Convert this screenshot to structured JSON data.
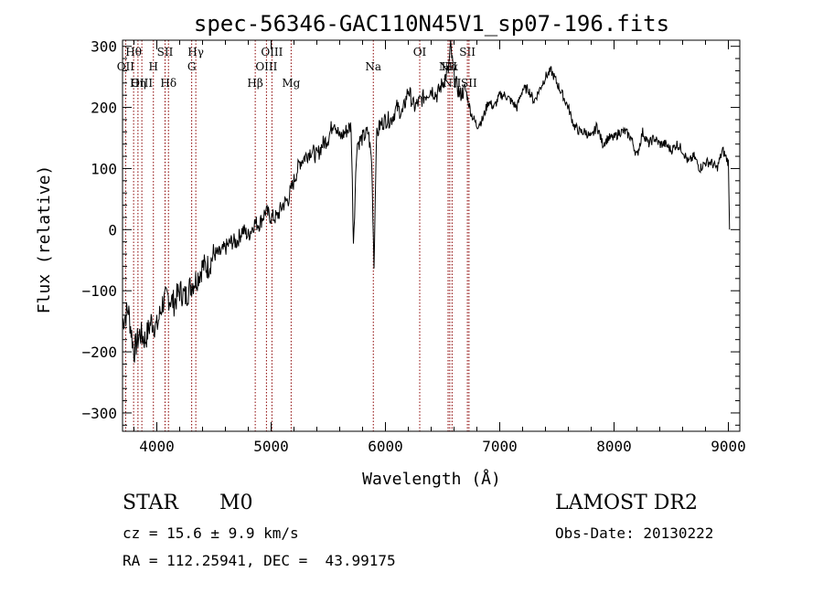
{
  "chart_data": {
    "type": "line",
    "title": "spec-56346-GAC110N45V1_sp07-196.fits",
    "xlabel": "Wavelength (Å)",
    "ylabel": "Flux (relative)",
    "xlim": [
      3700,
      9100
    ],
    "ylim": [
      -330,
      310
    ],
    "x_ticks": [
      4000,
      5000,
      6000,
      7000,
      8000,
      9000
    ],
    "y_ticks": [
      -300,
      -200,
      -100,
      0,
      100,
      200,
      300
    ],
    "grid": false,
    "line_color": "#000000",
    "marker_color": "#8b0000",
    "series": [
      {
        "x": [
          3700,
          3750,
          3800,
          3850,
          3900,
          3950,
          4000,
          4050,
          4100,
          4150,
          4200,
          4250,
          4300,
          4350,
          4400,
          4450,
          4500,
          4550,
          4600,
          4650,
          4700,
          4750,
          4800,
          4850,
          4900,
          4950,
          5000,
          5050,
          5100,
          5150,
          5200,
          5250,
          5300,
          5350,
          5400,
          5450,
          5500,
          5550,
          5600,
          5650,
          5700,
          5720,
          5750,
          5800,
          5850,
          5880,
          5900,
          5920,
          5950,
          6000,
          6050,
          6100,
          6150,
          6200,
          6250,
          6300,
          6350,
          6400,
          6450,
          6500,
          6550,
          6570,
          6600,
          6650,
          6700,
          6750,
          6800,
          6850,
          6900,
          6950,
          7000,
          7050,
          7100,
          7150,
          7200,
          7250,
          7300,
          7350,
          7400,
          7450,
          7500,
          7550,
          7600,
          7650,
          7700,
          7750,
          7800,
          7850,
          7900,
          7950,
          8000,
          8050,
          8100,
          8150,
          8200,
          8250,
          8300,
          8350,
          8400,
          8450,
          8500,
          8550,
          8600,
          8650,
          8700,
          8750,
          8800,
          8850,
          8900,
          8950,
          9000,
          9010
        ],
        "y": [
          -150,
          -130,
          -200,
          -170,
          -180,
          -150,
          -160,
          -120,
          -110,
          -120,
          -100,
          -110,
          -90,
          -80,
          -60,
          -60,
          -40,
          -40,
          -30,
          -20,
          -20,
          0,
          -10,
          10,
          10,
          30,
          20,
          20,
          40,
          50,
          80,
          110,
          120,
          130,
          120,
          140,
          150,
          180,
          150,
          160,
          170,
          -20,
          140,
          150,
          160,
          110,
          -60,
          150,
          170,
          180,
          180,
          200,
          190,
          230,
          200,
          210,
          220,
          230,
          220,
          240,
          260,
          300,
          250,
          220,
          230,
          190,
          170,
          180,
          210,
          200,
          220,
          220,
          210,
          200,
          230,
          230,
          210,
          230,
          250,
          260,
          240,
          220,
          200,
          170,
          160,
          160,
          150,
          170,
          140,
          150,
          150,
          160,
          160,
          150,
          120,
          160,
          140,
          150,
          140,
          140,
          130,
          140,
          130,
          110,
          120,
          100,
          110,
          110,
          100,
          130,
          110,
          0
        ]
      }
    ],
    "line_markers": [
      {
        "label": "Hθ",
        "x": 3797,
        "row": 0
      },
      {
        "label": "OII",
        "x": 3727,
        "row": 1
      },
      {
        "label": "OIII",
        "x": 3869,
        "row": 2
      },
      {
        "label": "Hη",
        "x": 3835,
        "row": 2
      },
      {
        "label": "SII",
        "x": 4072,
        "row": 0
      },
      {
        "label": "H",
        "x": 3970,
        "row": 1
      },
      {
        "label": "Hδ",
        "x": 4102,
        "row": 2
      },
      {
        "label": "Hγ",
        "x": 4341,
        "row": 0
      },
      {
        "label": "G",
        "x": 4305,
        "row": 1
      },
      {
        "label": "Hβ",
        "x": 4861,
        "row": 2
      },
      {
        "label": "OIII",
        "x": 5007,
        "row": 0
      },
      {
        "label": "OIII",
        "x": 4959,
        "row": 1
      },
      {
        "label": "Mg",
        "x": 5175,
        "row": 2
      },
      {
        "label": "Na",
        "x": 5894,
        "row": 1
      },
      {
        "label": "OI",
        "x": 6300,
        "row": 0
      },
      {
        "label": "Hα",
        "x": 6563,
        "row": 1
      },
      {
        "label": "NII",
        "x": 6583,
        "row": 2
      },
      {
        "label": "NII",
        "x": 6548,
        "row": 1
      },
      {
        "label": "SII",
        "x": 6717,
        "row": 0
      },
      {
        "label": "SII",
        "x": 6731,
        "row": 2
      }
    ]
  },
  "info": {
    "class": "STAR",
    "subclass": "M0",
    "survey": "LAMOST DR2",
    "redshift": "cz = 15.6 ± 9.9 km/s",
    "obs_date": "Obs-Date: 20130222",
    "coords": "RA = 112.25941, DEC =  43.99175"
  }
}
